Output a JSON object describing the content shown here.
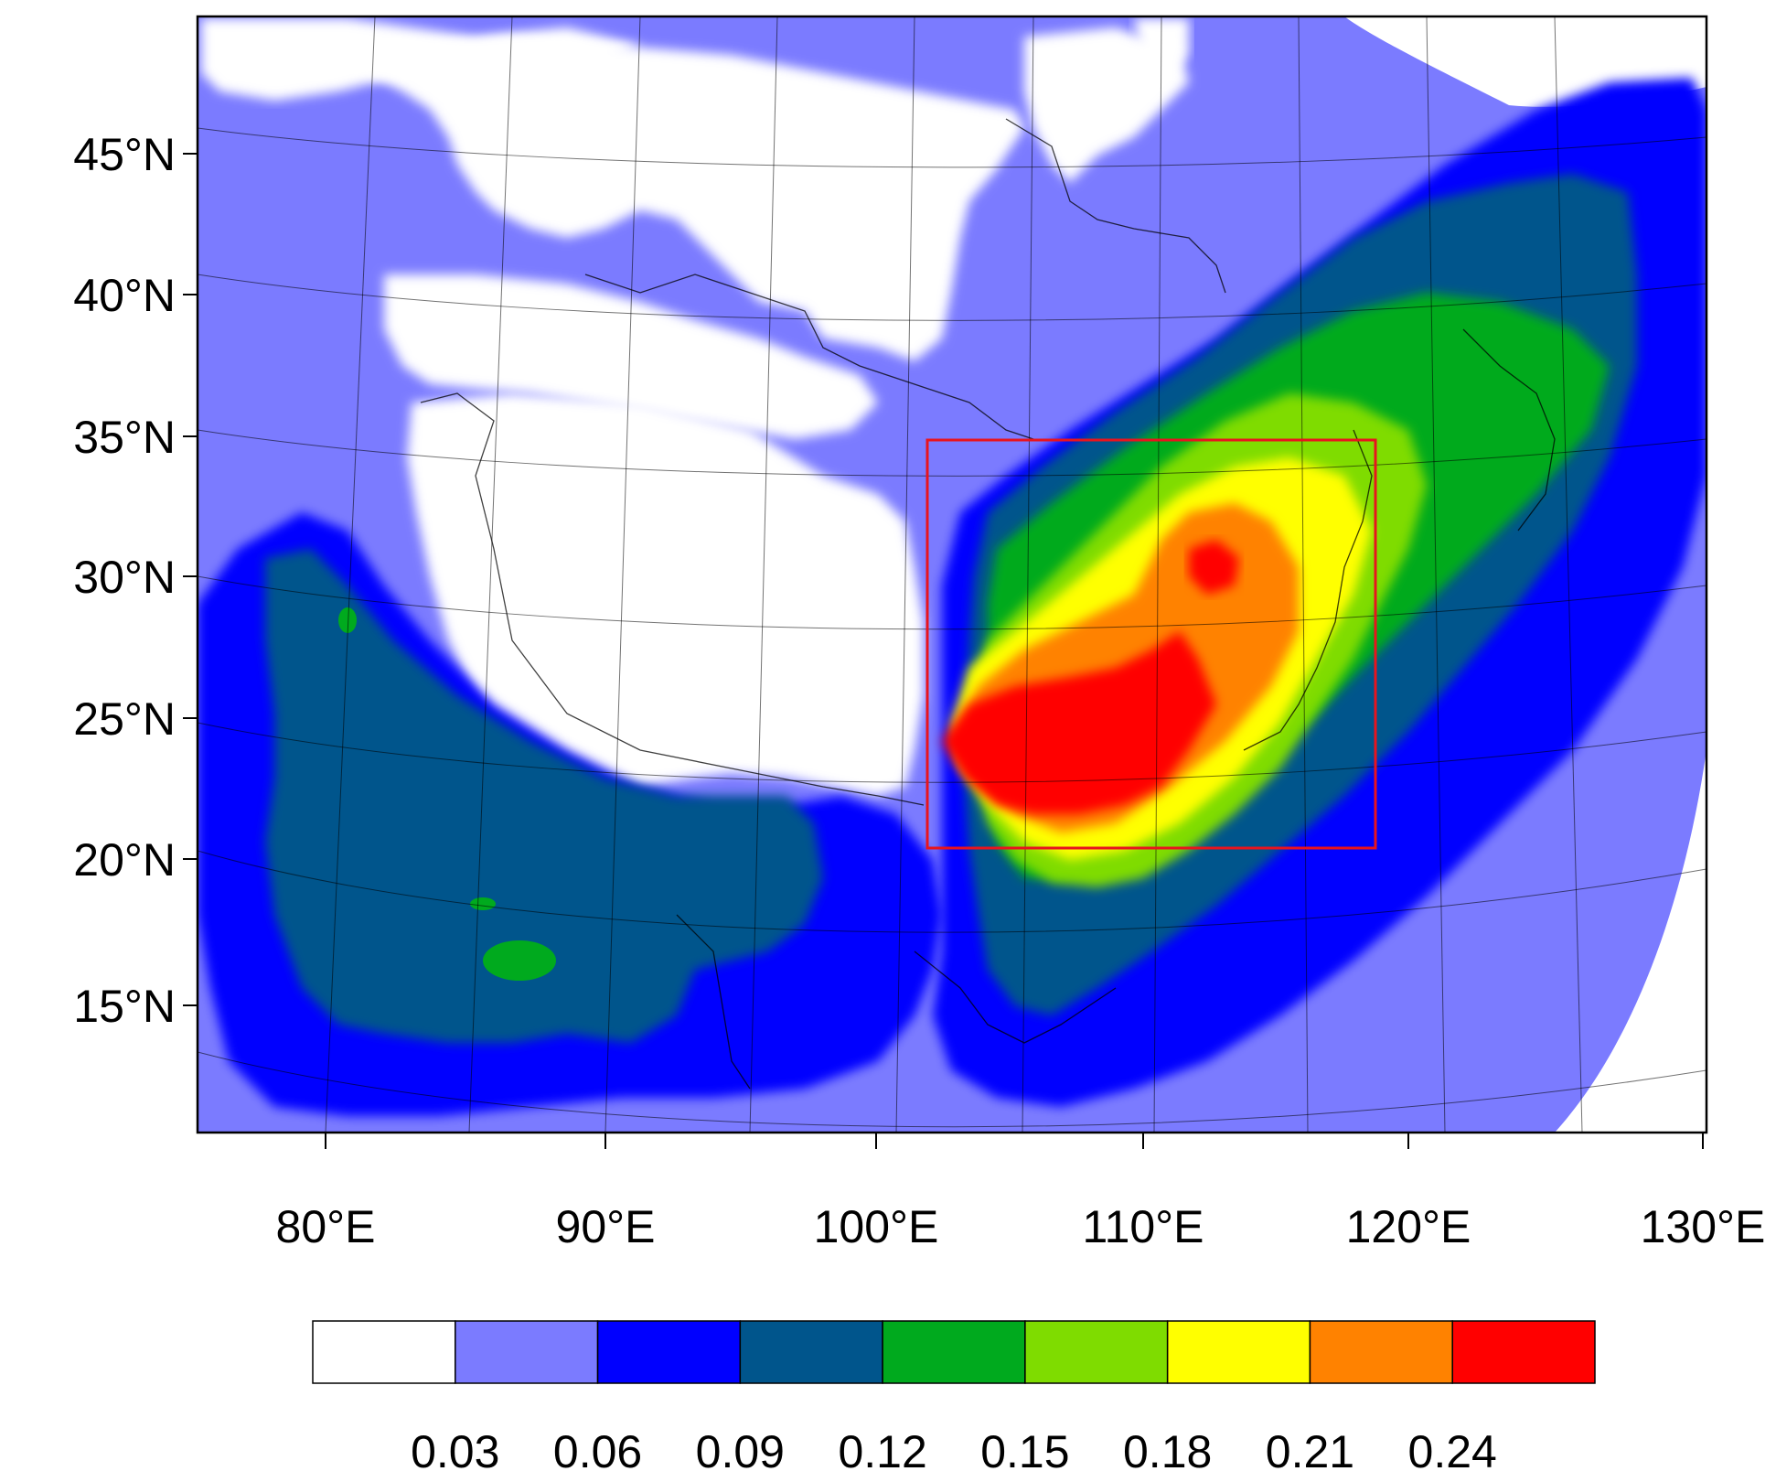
{
  "map": {
    "lat_labels": [
      "45°N",
      "40°N",
      "35°N",
      "30°N",
      "25°N",
      "20°N",
      "15°N"
    ],
    "lon_labels": [
      "80°E",
      "90°E",
      "100°E",
      "110°E",
      "120°E",
      "130°E"
    ],
    "highlight_box_color": "#e8141e",
    "highlight_box": {
      "lon_range": [
        "102°E",
        "118.5°E"
      ],
      "lat_range": [
        "20.5°N",
        "34.8°N"
      ]
    }
  },
  "colorbar": {
    "colors": [
      "#ffffff",
      "#7b7bff",
      "#0000ff",
      "#00558c",
      "#00aa1e",
      "#7fdc00",
      "#ffff00",
      "#ff8200",
      "#ff0000"
    ],
    "levels": [
      "0.03",
      "0.06",
      "0.09",
      "0.12",
      "0.15",
      "0.18",
      "0.21",
      "0.24"
    ]
  }
}
